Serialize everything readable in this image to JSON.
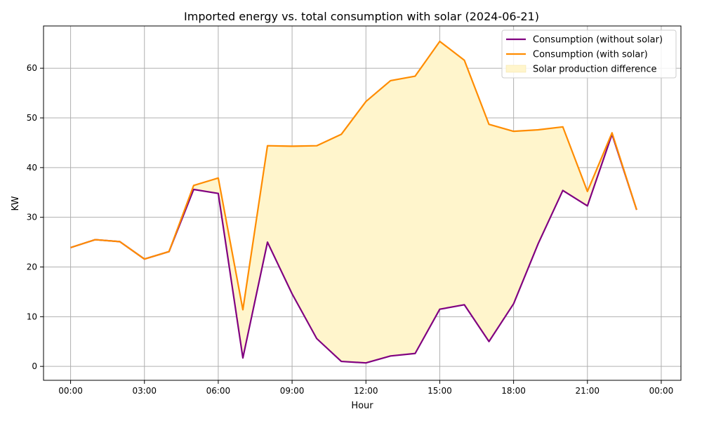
{
  "chart_data": {
    "type": "line",
    "title": "Imported energy vs. total consumption with solar (2024-06-21)",
    "xlabel": "Hour",
    "ylabel": "KW",
    "x": [
      "00:00",
      "01:00",
      "02:00",
      "03:00",
      "04:00",
      "05:00",
      "06:00",
      "07:00",
      "08:00",
      "09:00",
      "10:00",
      "11:00",
      "12:00",
      "13:00",
      "14:00",
      "15:00",
      "16:00",
      "17:00",
      "18:00",
      "19:00",
      "20:00",
      "21:00",
      "22:00",
      "23:00"
    ],
    "x_ticks": [
      "00:00",
      "03:00",
      "06:00",
      "09:00",
      "12:00",
      "15:00",
      "18:00",
      "21:00",
      "00:00"
    ],
    "y_ticks": [
      0,
      10,
      20,
      30,
      40,
      50,
      60
    ],
    "ylim": [
      -2.8,
      68.5
    ],
    "grid": true,
    "legend_position": "top-right",
    "series": [
      {
        "name": "Consumption (without solar)",
        "color": "#800080",
        "values": [
          23.9,
          25.5,
          25.1,
          21.6,
          23.1,
          35.6,
          34.8,
          1.7,
          25.0,
          14.6,
          5.6,
          1.0,
          0.7,
          2.1,
          2.6,
          11.5,
          12.4,
          5.0,
          12.6,
          24.7,
          35.4,
          32.3,
          46.7,
          31.5
        ]
      },
      {
        "name": "Consumption (with solar)",
        "color": "#ff8c00",
        "values": [
          23.9,
          25.5,
          25.1,
          21.6,
          23.1,
          36.4,
          37.9,
          11.4,
          44.4,
          44.3,
          44.4,
          46.7,
          53.3,
          57.5,
          58.4,
          65.4,
          61.6,
          48.7,
          47.3,
          47.6,
          48.2,
          35.2,
          47.0,
          31.5
        ]
      }
    ],
    "fill_between": {
      "name": "Solar production difference",
      "color": "#fff5cc"
    }
  }
}
